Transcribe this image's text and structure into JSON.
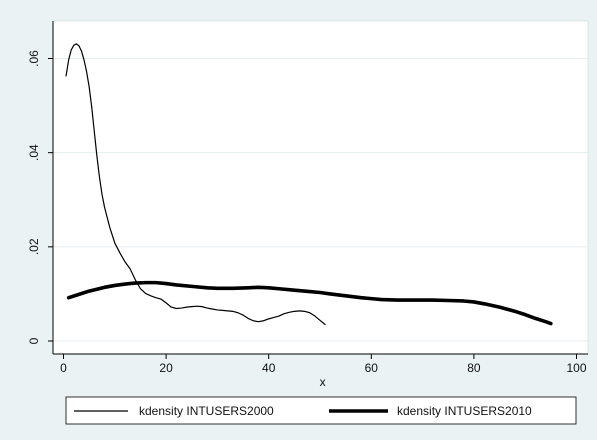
{
  "chart_data": {
    "type": "line",
    "title": "",
    "xlabel": "x",
    "ylabel": "",
    "xlim": [
      -2,
      101
    ],
    "ylim": [
      -0.001,
      0.0645
    ],
    "xticks": [
      0,
      20,
      40,
      60,
      80,
      100
    ],
    "xtick_labels": [
      "0",
      "20",
      "40",
      "60",
      "80",
      "100"
    ],
    "yticks": [
      0,
      0.02,
      0.04,
      0.06
    ],
    "ytick_labels": [
      "0",
      ".02",
      ".04",
      ".06"
    ],
    "grid": "horizontal",
    "legend_position": "bottom",
    "series": [
      {
        "name": "kdensity INTUSERS2000",
        "style": "thin",
        "x": [
          0.5,
          1.0,
          1.5,
          2.0,
          2.5,
          3.0,
          3.5,
          4.0,
          4.5,
          5.0,
          5.5,
          6.0,
          6.5,
          7.0,
          7.5,
          8.0,
          9.0,
          10.0,
          11.0,
          12.0,
          13.0,
          14.0,
          15.0,
          16.0,
          17.0,
          18.0,
          19.0,
          20.0,
          21.0,
          22.0,
          23.0,
          24.0,
          25.0,
          26.0,
          27.0,
          28.0,
          29.0,
          30.0,
          31.0,
          32.0,
          33.0,
          34.0,
          35.0,
          36.0,
          37.0,
          38.0,
          39.0,
          40.0,
          41.0,
          42.0,
          43.0,
          44.0,
          45.0,
          46.0,
          47.0,
          48.0,
          49.0,
          50.0,
          51.0
        ],
        "y": [
          0.0563,
          0.0597,
          0.0618,
          0.0628,
          0.0631,
          0.0627,
          0.0616,
          0.0597,
          0.0572,
          0.054,
          0.0497,
          0.0445,
          0.0394,
          0.0349,
          0.0312,
          0.0284,
          0.0242,
          0.0208,
          0.0187,
          0.0168,
          0.0153,
          0.013,
          0.0111,
          0.0101,
          0.0096,
          0.0092,
          0.0089,
          0.0081,
          0.0072,
          0.0069,
          0.007,
          0.0072,
          0.0073,
          0.0074,
          0.0073,
          0.007,
          0.0068,
          0.0066,
          0.0065,
          0.0064,
          0.0063,
          0.006,
          0.0055,
          0.0048,
          0.0043,
          0.0041,
          0.0043,
          0.0047,
          0.005,
          0.0053,
          0.0058,
          0.0061,
          0.0063,
          0.0064,
          0.0063,
          0.006,
          0.0053,
          0.0044,
          0.0035
        ]
      },
      {
        "name": "kdensity INTUSERS2010",
        "style": "thick",
        "x": [
          1,
          3,
          5,
          8,
          10,
          12,
          14,
          16,
          18,
          20,
          22,
          25,
          28,
          30,
          33,
          36,
          38,
          40,
          42,
          45,
          48,
          50,
          52,
          55,
          58,
          60,
          62,
          65,
          68,
          70,
          72,
          75,
          78,
          80,
          82,
          85,
          88,
          90,
          92,
          94,
          95
        ],
        "y": [
          0.0092,
          0.0099,
          0.0106,
          0.0114,
          0.0118,
          0.0121,
          0.0123,
          0.0124,
          0.0124,
          0.0122,
          0.0119,
          0.0116,
          0.0113,
          0.0112,
          0.0112,
          0.0113,
          0.0114,
          0.0113,
          0.0111,
          0.0108,
          0.0105,
          0.0103,
          0.01,
          0.0096,
          0.0092,
          0.009,
          0.0088,
          0.0087,
          0.0087,
          0.0087,
          0.0087,
          0.0086,
          0.0085,
          0.0083,
          0.0079,
          0.0072,
          0.0063,
          0.0056,
          0.0048,
          0.0041,
          0.0037
        ]
      }
    ]
  },
  "colors": {
    "background": "#eaf2f3",
    "plot_background": "#ffffff",
    "grid": "#e6eef0",
    "line": "#000000"
  }
}
